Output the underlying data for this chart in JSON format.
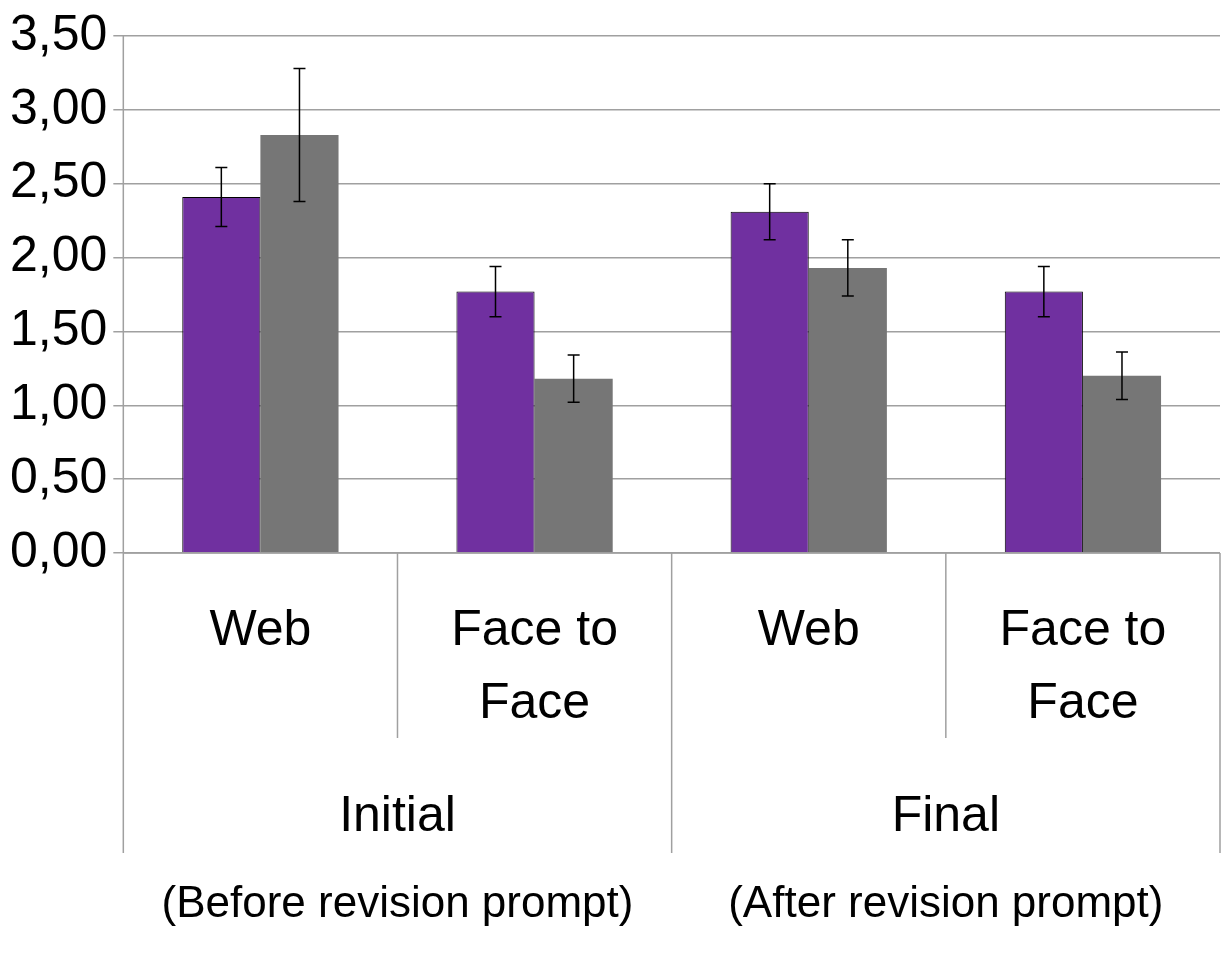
{
  "chart_data": {
    "type": "bar",
    "categories": [
      "Web",
      "Face to Face",
      "Web",
      "Face to Face"
    ],
    "series": [
      {
        "color": "#7030a0",
        "values": [
          2.41,
          1.77,
          2.31,
          1.77
        ],
        "errors": [
          0.2,
          0.17,
          0.19,
          0.17
        ]
      },
      {
        "color": "#767676",
        "values": [
          2.83,
          1.18,
          1.93,
          1.2
        ],
        "errors": [
          0.45,
          0.16,
          0.19,
          0.16
        ]
      }
    ],
    "ylim": [
      0,
      3.5
    ],
    "yticks": [
      {
        "value": 0,
        "label": "0,00"
      },
      {
        "value": 0.5,
        "label": "0,50"
      },
      {
        "value": 1,
        "label": "1,00"
      },
      {
        "value": 1.5,
        "label": "1,50"
      },
      {
        "value": 2,
        "label": "2,00"
      },
      {
        "value": 2.5,
        "label": "2,50"
      },
      {
        "value": 3,
        "label": "3,00"
      },
      {
        "value": 3.5,
        "label": "3,50"
      }
    ],
    "grid": "y",
    "legend": false,
    "annotations": [
      "Initial",
      "Final",
      "(Before revision prompt)",
      "(After revision prompt)"
    ]
  }
}
